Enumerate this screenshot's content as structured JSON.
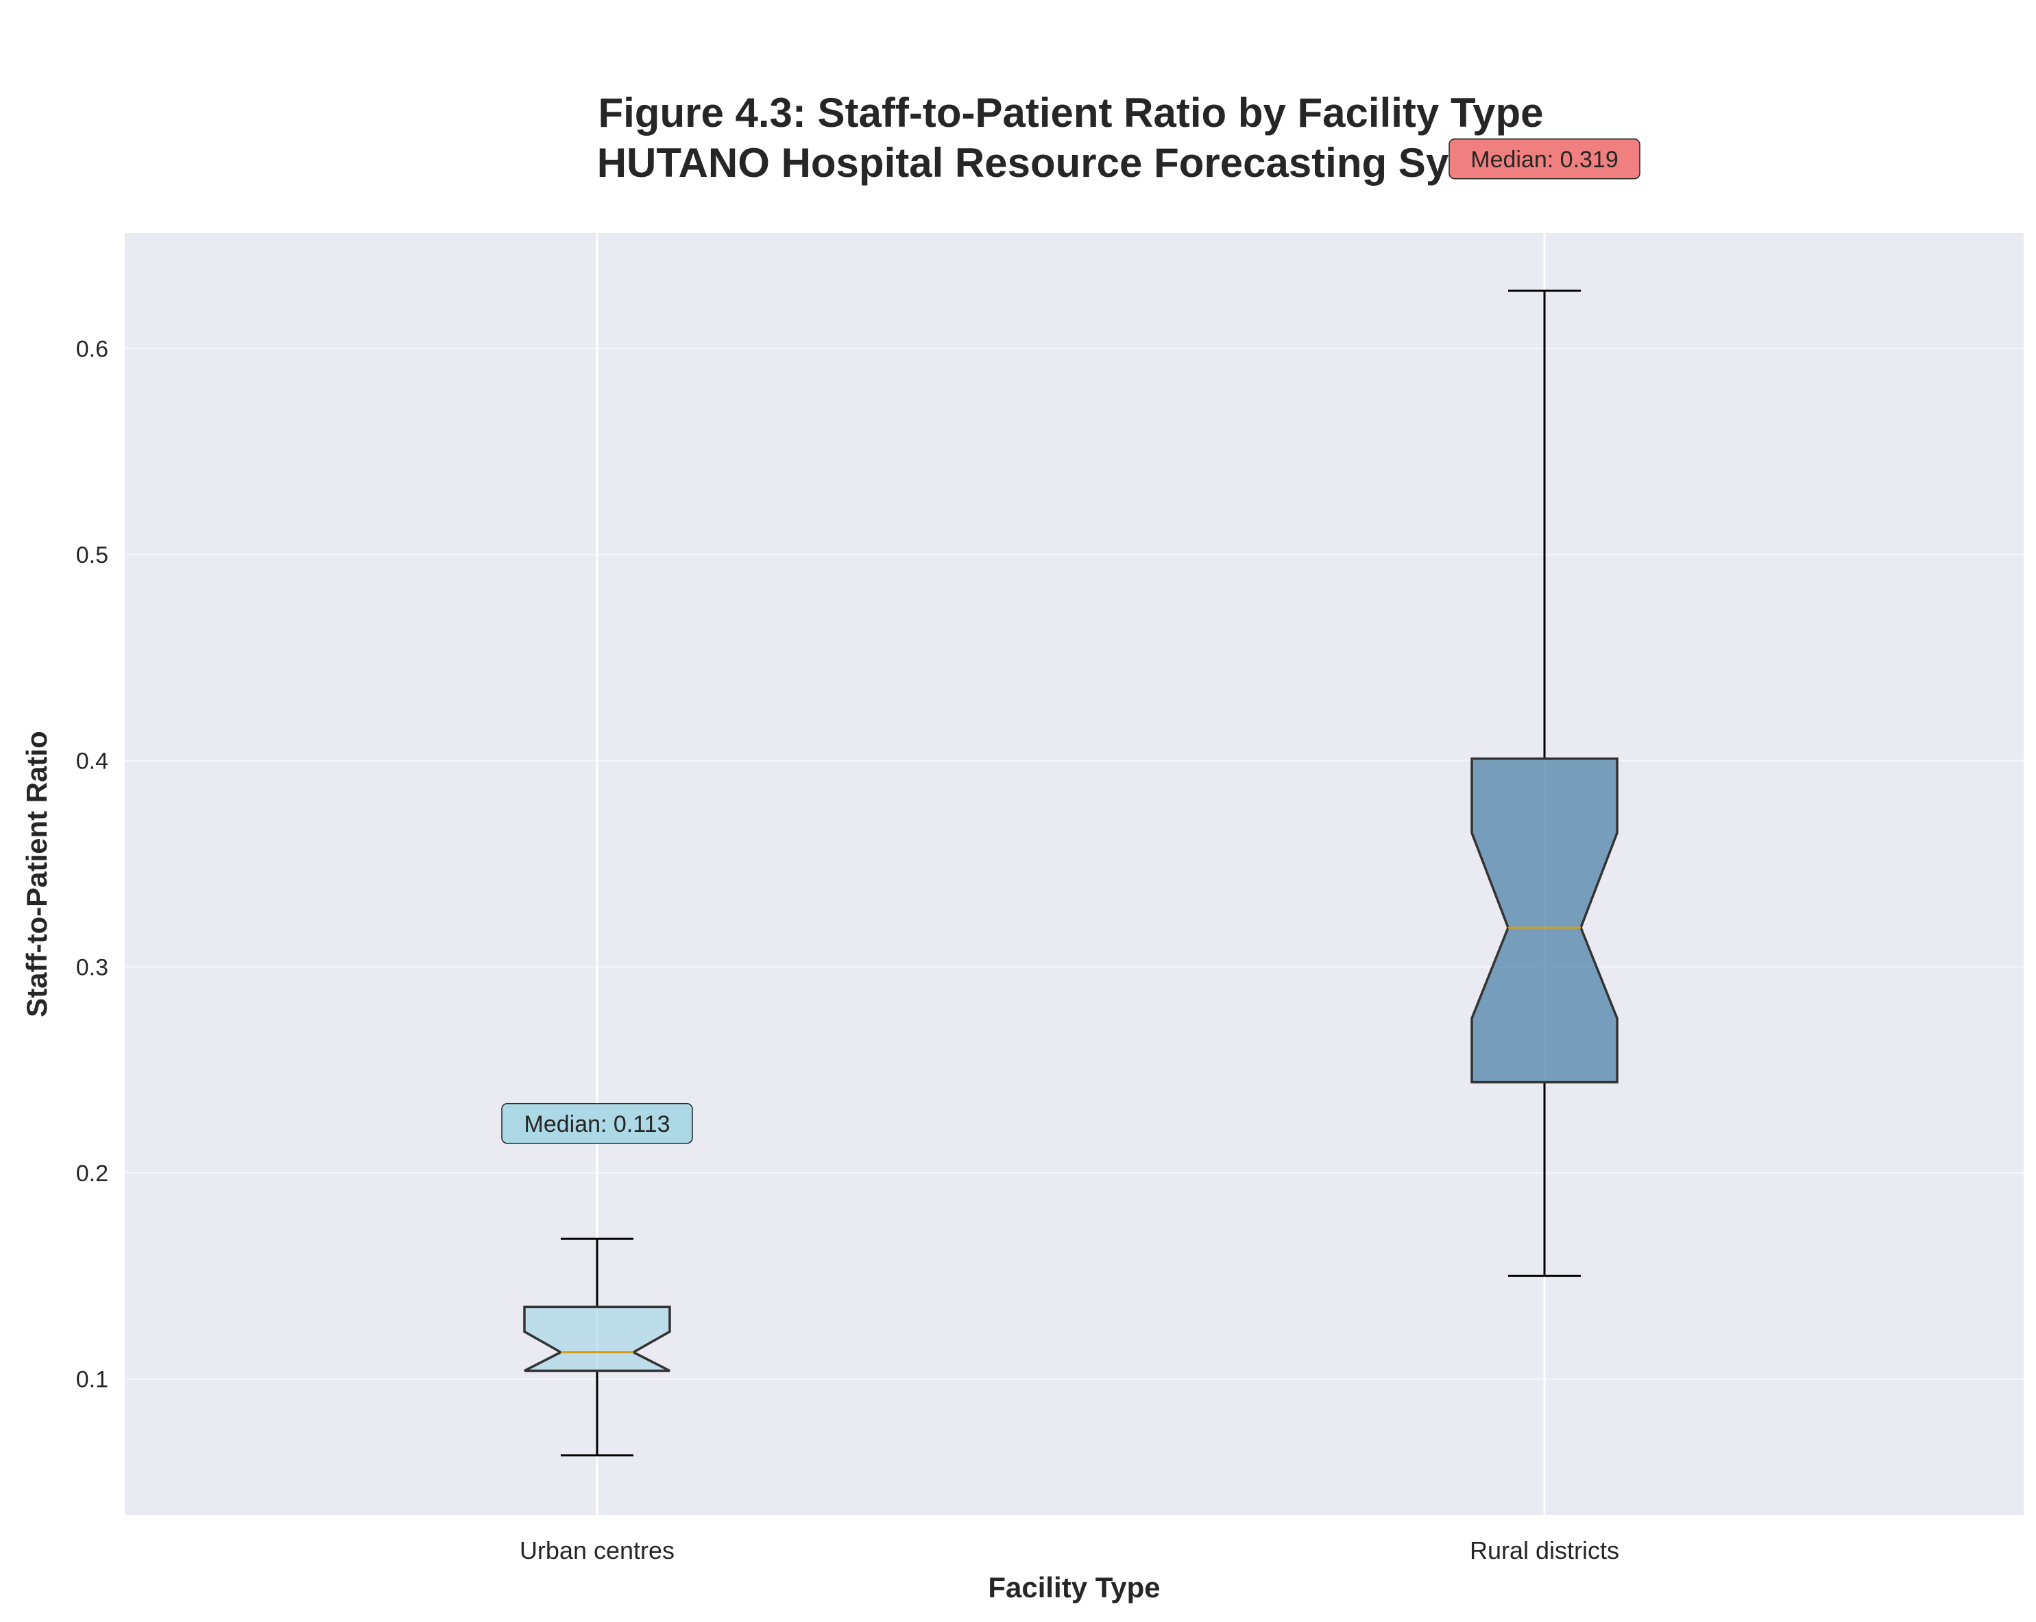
{
  "chart_data": {
    "type": "boxplot",
    "title": "Figure 4.3: Staff-to-Patient Ratio by Facility Type",
    "subtitle": "HUTANO Hospital Resource Forecasting System",
    "xlabel": "Facility Type",
    "ylabel": "Staff-to-Patient Ratio",
    "ylim": [
      0.034,
      0.656
    ],
    "yticks": [
      0.1,
      0.2,
      0.3,
      0.4,
      0.5,
      0.6
    ],
    "ytick_labels": [
      "0.1",
      "0.2",
      "0.3",
      "0.4",
      "0.5",
      "0.6"
    ],
    "categories": [
      "Urban centres",
      "Rural districts"
    ],
    "notched": true,
    "grid": true,
    "boxes": [
      {
        "category": "Urban centres",
        "whisker_low": 0.063,
        "q1": 0.104,
        "median": 0.113,
        "q3": 0.135,
        "whisker_high": 0.168,
        "notch_low": 0.104,
        "notch_high": 0.123,
        "color": "#ADD8E6",
        "annotation": "Median: 0.113",
        "annotation_y": 0.224,
        "annotation_color": "#ADD8E6"
      },
      {
        "category": "Rural districts",
        "whisker_low": 0.15,
        "q1": 0.244,
        "median": 0.319,
        "q3": 0.401,
        "whisker_high": 0.628,
        "notch_low": 0.275,
        "notch_high": 0.365,
        "color": "#4A7FA5",
        "annotation": "Median: 0.319",
        "annotation_y": 0.692,
        "annotation_color": "#F08080"
      }
    ],
    "colors": {
      "plot_background": "#EAEAF2",
      "grid": "#FFFFFF",
      "median_line": "#D4A017",
      "box_edge": "#333333"
    }
  }
}
